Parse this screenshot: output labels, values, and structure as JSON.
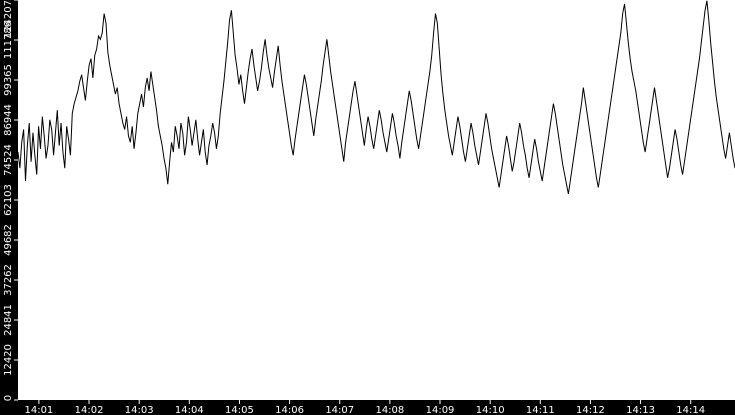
{
  "chart_data": {
    "type": "line",
    "title": "",
    "xlabel": "",
    "ylabel": "",
    "ylim": [
      0,
      124207
    ],
    "y_ticks": [
      0,
      12420,
      24841,
      37262,
      49682,
      62103,
      74524,
      86944,
      99365,
      111786,
      124207
    ],
    "y_tick_labels": [
      "0",
      "12420",
      "24841",
      "37262",
      "49682",
      "62103",
      "74524",
      "86944",
      "99365",
      "111786",
      "124207"
    ],
    "x_range": [
      "14:00:35",
      "14:14:53"
    ],
    "x_ticks": [
      "14:01",
      "14:02",
      "14:03",
      "14:04",
      "14:05",
      "14:06",
      "14:07",
      "14:08",
      "14:09",
      "14:10",
      "14:11",
      "14:12",
      "14:13",
      "14:14"
    ],
    "grid": false,
    "colors": {
      "background": "#000000",
      "plot": "#ffffff",
      "series": "#000000",
      "labels": "#ffffff"
    },
    "series": [
      {
        "name": "",
        "values": [
          77000,
          72000,
          80000,
          84000,
          68000,
          79000,
          86000,
          74000,
          83000,
          76000,
          70000,
          85000,
          78000,
          88000,
          82000,
          75000,
          79000,
          87000,
          84000,
          76000,
          83000,
          90000,
          79000,
          86000,
          77000,
          72000,
          85000,
          81000,
          76000,
          89000,
          92000,
          94000,
          96000,
          99000,
          101000,
          97000,
          93000,
          99000,
          104000,
          106000,
          100000,
          107000,
          109000,
          113000,
          112000,
          114000,
          120000,
          117000,
          108000,
          104000,
          101000,
          98000,
          95000,
          97000,
          92000,
          89000,
          86000,
          84000,
          88000,
          82000,
          80000,
          85000,
          78000,
          83000,
          89000,
          92000,
          95000,
          91000,
          97000,
          100000,
          96000,
          102000,
          98000,
          94000,
          90000,
          85000,
          82000,
          79000,
          75000,
          72000,
          67000,
          74000,
          80000,
          77000,
          85000,
          82000,
          78000,
          86000,
          83000,
          76000,
          80000,
          88000,
          84000,
          79000,
          83000,
          87000,
          81000,
          76000,
          80000,
          84000,
          77000,
          73000,
          79000,
          82000,
          86000,
          83000,
          78000,
          82000,
          89000,
          94000,
          99000,
          105000,
          111000,
          118000,
          121000,
          114000,
          107000,
          103000,
          98000,
          101000,
          96000,
          92000,
          97000,
          102000,
          106000,
          109000,
          104000,
          100000,
          96000,
          99000,
          103000,
          108000,
          112000,
          107000,
          103000,
          100000,
          97000,
          102000,
          106000,
          110000,
          104000,
          99000,
          95000,
          91000,
          87000,
          83000,
          79000,
          76000,
          81000,
          85000,
          89000,
          93000,
          97000,
          101000,
          98000,
          94000,
          90000,
          86000,
          82000,
          87000,
          91000,
          95000,
          99000,
          104000,
          108000,
          112000,
          107000,
          102000,
          98000,
          94000,
          90000,
          86000,
          82000,
          78000,
          74000,
          80000,
          84000,
          88000,
          92000,
          96000,
          99000,
          95000,
          91000,
          87000,
          83000,
          79000,
          84000,
          88000,
          85000,
          81000,
          78000,
          82000,
          86000,
          90000,
          87000,
          83000,
          80000,
          77000,
          81000,
          85000,
          89000,
          86000,
          82000,
          79000,
          75000,
          80000,
          84000,
          88000,
          92000,
          96000,
          93000,
          89000,
          85000,
          81000,
          78000,
          82000,
          86000,
          90000,
          94000,
          98000,
          102000,
          107000,
          114000,
          120000,
          117000,
          109000,
          101000,
          95000,
          90000,
          86000,
          82000,
          79000,
          76000,
          80000,
          84000,
          88000,
          85000,
          81000,
          77000,
          74000,
          78000,
          82000,
          86000,
          83000,
          79000,
          76000,
          73000,
          77000,
          81000,
          85000,
          89000,
          86000,
          82000,
          78000,
          75000,
          72000,
          69000,
          66000,
          70000,
          74000,
          78000,
          82000,
          79000,
          75000,
          71000,
          74000,
          78000,
          82000,
          86000,
          83000,
          79000,
          76000,
          72000,
          69000,
          73000,
          77000,
          81000,
          78000,
          74000,
          71000,
          68000,
          72000,
          76000,
          80000,
          84000,
          88000,
          92000,
          89000,
          85000,
          81000,
          77000,
          73000,
          70000,
          67000,
          64000,
          68000,
          72000,
          76000,
          80000,
          84000,
          88000,
          92000,
          97000,
          93000,
          89000,
          85000,
          81000,
          77000,
          73000,
          69000,
          66000,
          70000,
          74000,
          78000,
          82000,
          86000,
          90000,
          94000,
          98000,
          102000,
          106000,
          110000,
          114000,
          120000,
          123000,
          117000,
          111000,
          106000,
          102000,
          99000,
          96000,
          92000,
          88000,
          84000,
          80000,
          77000,
          81000,
          85000,
          89000,
          93000,
          97000,
          93000,
          89000,
          85000,
          81000,
          77000,
          73000,
          69000,
          72000,
          76000,
          80000,
          84000,
          81000,
          77000,
          73000,
          70000,
          74000,
          78000,
          82000,
          86000,
          90000,
          94000,
          98000,
          102000,
          106000,
          111000,
          116000,
          121000,
          124000,
          118000,
          111000,
          105000,
          99000,
          94000,
          90000,
          86000,
          82000,
          78000,
          75000,
          79000,
          83000,
          79000,
          75000,
          72000
        ],
        "n_points_note": ""
      }
    ]
  }
}
